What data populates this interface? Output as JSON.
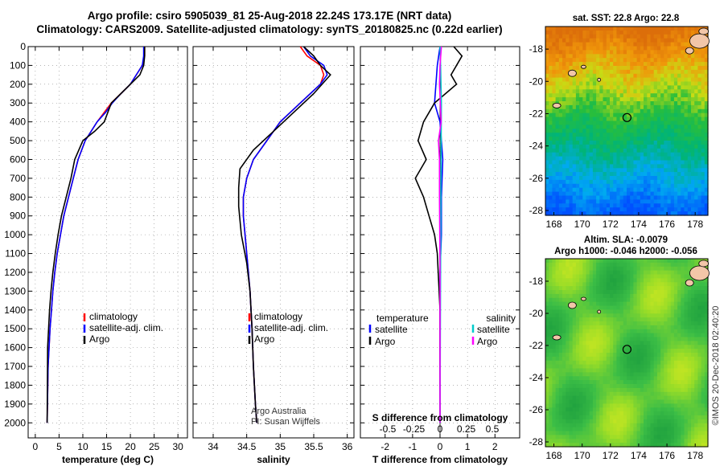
{
  "header": {
    "line1": "Argo profile: csiro 5905039_81 25-Aug-2018 22.24S 173.17E (NRT data)",
    "line2": "Climatology: CARS2009. Satellite-adjusted climatology: synTS_20180825.nc (0.22d earlier)"
  },
  "colors": {
    "climatology": "#ff0000",
    "satellite": "#0000ff",
    "argo": "#000000",
    "sal_sat": "#00cccc",
    "sal_argo": "#ff00ff"
  },
  "chart_data": [
    {
      "type": "line",
      "xlabel": "temperature (deg C)",
      "ylabel": "",
      "xlim": [
        -1.5,
        32
      ],
      "ylim": [
        2080,
        0
      ],
      "xticks": [
        0,
        5,
        10,
        15,
        20,
        25,
        30
      ],
      "yticks": [
        0,
        100,
        200,
        300,
        400,
        500,
        600,
        700,
        800,
        900,
        1000,
        1100,
        1200,
        1300,
        1400,
        1500,
        1600,
        1700,
        1800,
        1900,
        2000
      ],
      "legend": {
        "position": "lower-center",
        "entries": [
          "climatology",
          "satellite-adj. clim.",
          "Argo"
        ]
      },
      "series": [
        {
          "name": "climatology",
          "color": "#ff0000",
          "x": [
            23.0,
            23.0,
            22.5,
            20.0,
            18.0,
            16.0,
            14.5,
            13.0,
            10.5,
            9.0,
            8.0,
            7.0,
            6.0,
            5.3,
            4.6,
            4.1,
            3.7,
            3.4,
            3.1,
            2.9,
            2.7,
            2.5
          ],
          "y": [
            0,
            50,
            100,
            200,
            250,
            300,
            350,
            400,
            500,
            600,
            700,
            800,
            900,
            1000,
            1100,
            1200,
            1300,
            1400,
            1500,
            1600,
            1700,
            2000
          ]
        },
        {
          "name": "satellite-adj. clim.",
          "color": "#0000ff",
          "x": [
            22.8,
            22.8,
            22.5,
            20.0,
            18.0,
            16.2,
            14.8,
            13.0,
            10.5,
            9.0,
            8.0,
            7.0,
            6.0,
            5.3,
            4.6,
            4.1,
            3.7,
            3.4,
            3.1,
            2.9,
            2.7,
            2.5
          ],
          "y": [
            0,
            50,
            100,
            200,
            250,
            300,
            350,
            400,
            500,
            600,
            700,
            800,
            900,
            1000,
            1100,
            1200,
            1300,
            1400,
            1500,
            1600,
            1700,
            2000
          ]
        },
        {
          "name": "Argo",
          "color": "#000000",
          "x": [
            23.0,
            23.0,
            22.8,
            22.0,
            20.0,
            18.0,
            16.0,
            14.5,
            12.5,
            10.0,
            8.3,
            7.5,
            6.5,
            5.5,
            4.8,
            4.2,
            3.7,
            3.3,
            3.0,
            2.8,
            2.6,
            2.5
          ],
          "y": [
            0,
            50,
            100,
            150,
            200,
            250,
            300,
            400,
            450,
            500,
            600,
            700,
            800,
            900,
            1000,
            1100,
            1200,
            1300,
            1400,
            1500,
            1600,
            2000
          ]
        }
      ]
    },
    {
      "type": "line",
      "xlabel": "salinity",
      "ylabel": "",
      "xlim": [
        33.7,
        36.1
      ],
      "ylim": [
        2080,
        0
      ],
      "xticks": [
        34,
        34.5,
        35,
        35.5,
        36
      ],
      "legend": {
        "position": "lower-center",
        "entries": [
          "climatology",
          "satellite-adj. clim.",
          "Argo"
        ]
      },
      "annotation": [
        "Argo Australia",
        "PI: Susan Wijffels"
      ],
      "series": [
        {
          "name": "climatology",
          "color": "#ff0000",
          "x": [
            35.3,
            35.4,
            35.6,
            35.65,
            35.6,
            35.3,
            35.0,
            34.8,
            34.6,
            34.5,
            34.45,
            34.45,
            34.5,
            34.55,
            34.58,
            34.6,
            34.63,
            34.65
          ],
          "y": [
            0,
            50,
            100,
            150,
            200,
            300,
            400,
            500,
            600,
            700,
            800,
            900,
            1100,
            1300,
            1500,
            1700,
            1900,
            2000
          ]
        },
        {
          "name": "satellite-adj. clim.",
          "color": "#0000ff",
          "x": [
            35.35,
            35.45,
            35.65,
            35.7,
            35.6,
            35.3,
            35.0,
            34.8,
            34.6,
            34.5,
            34.45,
            34.45,
            34.5,
            34.55,
            34.58,
            34.6,
            34.63,
            34.65
          ],
          "y": [
            0,
            50,
            100,
            150,
            200,
            300,
            400,
            500,
            600,
            700,
            800,
            900,
            1100,
            1300,
            1500,
            1700,
            1900,
            2000
          ]
        },
        {
          "name": "Argo",
          "color": "#000000",
          "x": [
            35.35,
            35.5,
            35.6,
            35.75,
            35.5,
            35.2,
            34.9,
            34.6,
            34.4,
            34.38,
            34.38,
            34.42,
            34.5,
            34.55,
            34.58,
            34.6,
            34.63,
            34.65
          ],
          "y": [
            0,
            50,
            100,
            150,
            250,
            350,
            450,
            550,
            650,
            750,
            850,
            1000,
            1150,
            1300,
            1500,
            1700,
            1900,
            2000
          ]
        }
      ]
    },
    {
      "type": "line",
      "xlabel": "T difference from climatology",
      "title2": "S difference from climatology",
      "xlim": [
        -2.9,
        2.9
      ],
      "ylim": [
        2080,
        0
      ],
      "xticks": [
        -2,
        -1,
        0,
        1,
        2
      ],
      "top_xticks": [
        -0.5,
        -0.25,
        0,
        0.25,
        0.5
      ],
      "legend_left": {
        "title": "temperature",
        "entries": [
          "satellite",
          "Argo"
        ]
      },
      "legend_right": {
        "title": "salinity",
        "entries": [
          "satellite",
          "Argo"
        ]
      },
      "series": [
        {
          "name": "satellite",
          "kind": "temperature",
          "color": "#0000ff",
          "x": [
            0.0,
            -0.1,
            -0.2,
            0.0,
            0.1,
            0.05,
            0.05,
            0.0,
            0.0,
            0.0
          ],
          "y": [
            0,
            100,
            300,
            400,
            600,
            800,
            1000,
            1200,
            1500,
            2000
          ]
        },
        {
          "name": "Argo",
          "kind": "temperature",
          "color": "#000000",
          "x": [
            0.5,
            0.8,
            0.4,
            0.6,
            -0.2,
            -0.6,
            -0.8,
            -0.5,
            -0.9,
            -0.6,
            -0.4,
            -0.2,
            -0.1,
            0.0,
            0.0
          ],
          "y": [
            0,
            50,
            150,
            200,
            300,
            400,
            500,
            600,
            700,
            800,
            900,
            1000,
            1100,
            1400,
            2000
          ]
        },
        {
          "name": "satellite",
          "kind": "salinity",
          "color": "#00cccc",
          "x": [
            0.0,
            0.02,
            0.05,
            0.04,
            0.03,
            0.02,
            0.01,
            0.0
          ],
          "y": [
            0,
            100,
            300,
            500,
            800,
            1200,
            1600,
            2000
          ]
        },
        {
          "name": "Argo",
          "kind": "salinity",
          "color": "#ff00ff",
          "x": [
            0.05,
            0.0,
            -0.02,
            0.04,
            -0.06,
            -0.02,
            -0.02,
            0.0,
            0.0
          ],
          "y": [
            0,
            100,
            200,
            400,
            500,
            600,
            800,
            1200,
            2000
          ]
        }
      ]
    }
  ],
  "maps": [
    {
      "title": "sat. SST: 22.8 Argo: 22.8",
      "lon_ticks": [
        "168",
        "170",
        "172",
        "174",
        "176",
        "178"
      ],
      "lat_ticks": [
        "-18",
        "-20",
        "-22",
        "-24",
        "-26",
        "-28"
      ]
    },
    {
      "title1": "Altim. SLA: -0.0079",
      "title2": "Argo h1000: -0.046 h2000: -0.056",
      "lon_ticks": [
        "168",
        "170",
        "172",
        "174",
        "176",
        "178"
      ],
      "lat_ticks": [
        "-18",
        "-20",
        "-22",
        "-24",
        "-26",
        "-28"
      ]
    }
  ],
  "credit": "©IMOS 20-Dec-2018 02:40:20"
}
